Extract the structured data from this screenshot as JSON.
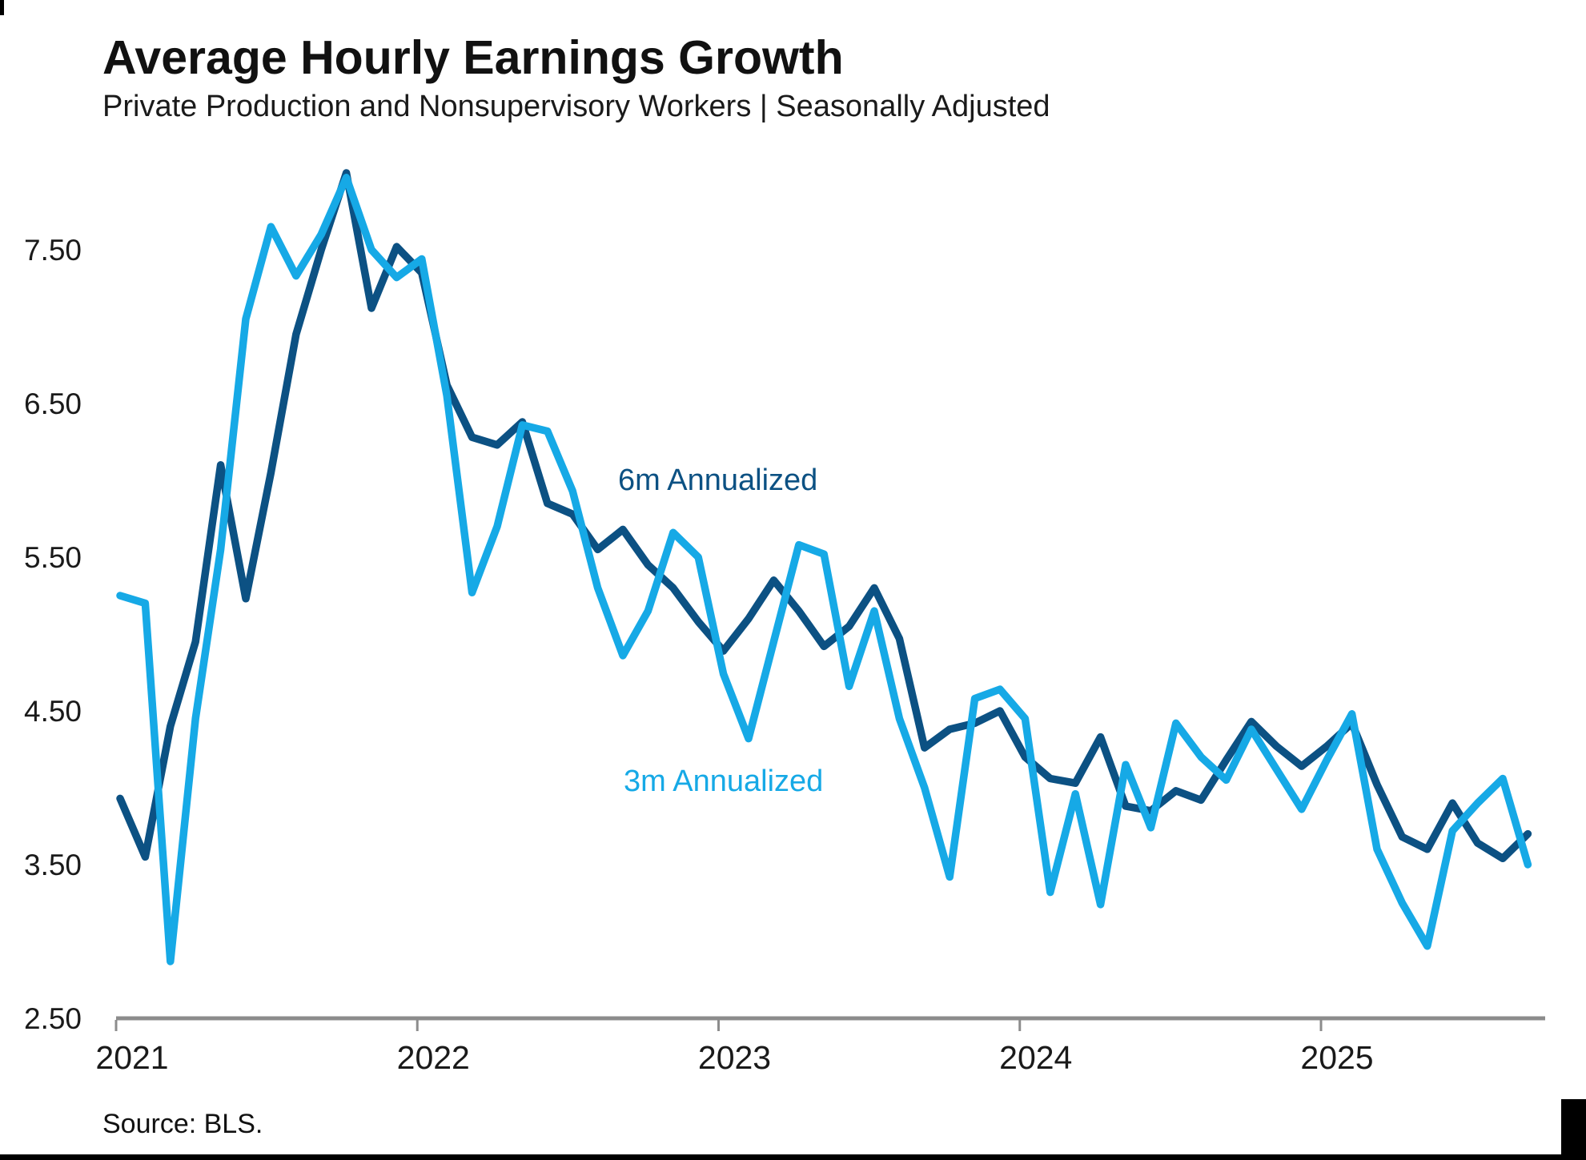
{
  "header": {
    "title": "Average Hourly Earnings Growth",
    "subtitle": "Private Production and Nonsupervisory Workers | Seasonally Adjusted"
  },
  "footer": {
    "source": "Source: BLS."
  },
  "colors": {
    "dark_blue": "#0C5183",
    "light_blue": "#16A9E6",
    "axis_gray": "#8C8C8C",
    "text_black": "#1A1A1A",
    "brand_black": "#000000"
  },
  "chart_data": {
    "type": "line",
    "title": "Average Hourly Earnings Growth",
    "subtitle": "Private Production and Nonsupervisory Workers | Seasonally Adjusted",
    "source": "Source: BLS.",
    "grid": false,
    "legend_position": "inline-annotations",
    "ylim": [
      2.5,
      8.3
    ],
    "y_ticks": [
      2.5,
      3.5,
      4.5,
      5.5,
      6.5,
      7.5
    ],
    "y_tick_labels": [
      "2.50",
      "3.50",
      "4.50",
      "5.50",
      "6.50",
      "7.50"
    ],
    "x_tick_labels": [
      "2021",
      "2022",
      "2023",
      "2024",
      "2025"
    ],
    "x": [
      "2021-01",
      "2021-02",
      "2021-03",
      "2021-04",
      "2021-05",
      "2021-06",
      "2021-07",
      "2021-08",
      "2021-09",
      "2021-10",
      "2021-11",
      "2021-12",
      "2022-01",
      "2022-02",
      "2022-03",
      "2022-04",
      "2022-05",
      "2022-06",
      "2022-07",
      "2022-08",
      "2022-09",
      "2022-10",
      "2022-11",
      "2022-12",
      "2023-01",
      "2023-02",
      "2023-03",
      "2023-04",
      "2023-05",
      "2023-06",
      "2023-07",
      "2023-08",
      "2023-09",
      "2023-10",
      "2023-11",
      "2023-12",
      "2024-01",
      "2024-02",
      "2024-03",
      "2024-04",
      "2024-05",
      "2024-06",
      "2024-07",
      "2024-08",
      "2024-09",
      "2024-10",
      "2024-11",
      "2024-12",
      "2025-01",
      "2025-02",
      "2025-03",
      "2025-04",
      "2025-05",
      "2025-06",
      "2025-07",
      "2025-08",
      "2025-09"
    ],
    "series": [
      {
        "name": "6m Annualized",
        "color_key": "dark_blue",
        "values": [
          3.93,
          3.55,
          4.4,
          4.95,
          6.1,
          5.23,
          6.05,
          6.95,
          7.5,
          8.0,
          7.12,
          7.52,
          7.35,
          6.62,
          6.28,
          6.23,
          6.38,
          5.85,
          5.78,
          5.55,
          5.68,
          5.45,
          5.3,
          5.08,
          4.89,
          5.1,
          5.35,
          5.15,
          4.92,
          5.05,
          5.3,
          4.97,
          4.26,
          4.38,
          4.42,
          4.5,
          4.2,
          4.06,
          4.03,
          4.33,
          3.88,
          3.85,
          3.98,
          3.92,
          4.18,
          4.43,
          4.27,
          4.14,
          4.27,
          4.42,
          4.02,
          3.68,
          3.6,
          3.9,
          3.64,
          3.54,
          3.7
        ]
      },
      {
        "name": "3m Annualized",
        "color_key": "light_blue",
        "values": [
          5.25,
          5.2,
          2.87,
          4.45,
          5.55,
          7.05,
          7.65,
          7.33,
          7.6,
          7.97,
          7.5,
          7.32,
          7.44,
          6.55,
          5.27,
          5.7,
          6.36,
          6.32,
          5.93,
          5.3,
          4.86,
          5.15,
          5.66,
          5.5,
          4.74,
          4.32,
          4.95,
          5.58,
          5.52,
          4.66,
          5.15,
          4.45,
          4.0,
          3.42,
          4.58,
          4.64,
          4.45,
          3.32,
          3.96,
          3.24,
          4.15,
          3.74,
          4.42,
          4.2,
          4.05,
          4.38,
          4.12,
          3.86,
          4.18,
          4.48,
          3.6,
          3.25,
          2.97,
          3.72,
          3.9,
          4.06,
          3.5
        ]
      }
    ],
    "annotations": [
      {
        "text": "6m Annualized",
        "color_key": "dark_blue"
      },
      {
        "text": "3m Annualized",
        "color_key": "light_blue"
      }
    ]
  }
}
